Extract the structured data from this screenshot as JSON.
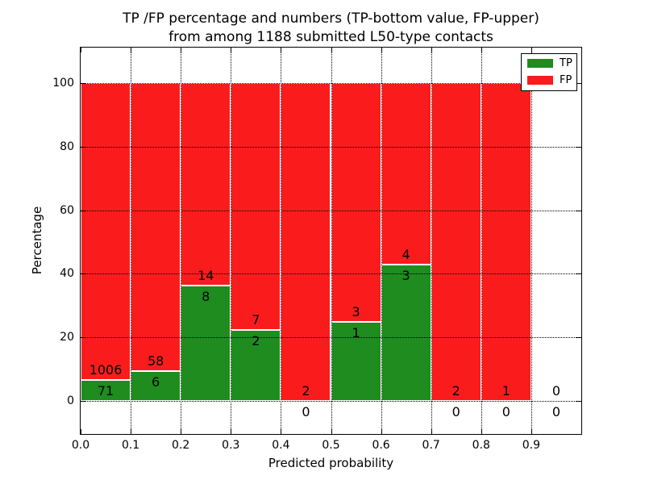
{
  "chart_data": {
    "type": "bar",
    "stacked": true,
    "title_line1": "TP /FP percentage and numbers (TP-bottom value, FP-upper)",
    "title_line2": "from among 1188 submitted L50-type contacts",
    "xlabel": "Predicted probability",
    "ylabel": "Percentage",
    "total_submitted": 1188,
    "contact_type": "L50",
    "legend": [
      {
        "name": "TP",
        "color": "#1e8c1e"
      },
      {
        "name": "FP",
        "color": "#fa1c1c"
      }
    ],
    "legend_position": "upper right",
    "grid": true,
    "xlim": [
      0.0,
      1.0
    ],
    "ylim_shown_ticks": [
      0,
      20,
      40,
      60,
      80,
      100
    ],
    "xtick_labels": [
      "0.0",
      "0.1",
      "0.2",
      "0.3",
      "0.4",
      "0.5",
      "0.6",
      "0.7",
      "0.8",
      "0.9"
    ],
    "ytick_labels": [
      "0",
      "20",
      "40",
      "60",
      "80",
      "100"
    ],
    "bar_note": "each bar is a 0.1-wide probability bin; green TP% bottom, red FP% top; stacks sum to 100% when counts exist",
    "bins": [
      {
        "x0": 0.0,
        "x1": 0.1,
        "tp": 71,
        "fp": 1006
      },
      {
        "x0": 0.1,
        "x1": 0.2,
        "tp": 6,
        "fp": 58
      },
      {
        "x0": 0.2,
        "x1": 0.3,
        "tp": 8,
        "fp": 14
      },
      {
        "x0": 0.3,
        "x1": 0.4,
        "tp": 2,
        "fp": 7
      },
      {
        "x0": 0.4,
        "x1": 0.5,
        "tp": 0,
        "fp": 2
      },
      {
        "x0": 0.5,
        "x1": 0.6,
        "tp": 1,
        "fp": 3
      },
      {
        "x0": 0.6,
        "x1": 0.7,
        "tp": 3,
        "fp": 4
      },
      {
        "x0": 0.7,
        "x1": 0.8,
        "tp": 0,
        "fp": 2
      },
      {
        "x0": 0.8,
        "x1": 0.9,
        "tp": 0,
        "fp": 1
      },
      {
        "x0": 0.9,
        "x1": 1.0,
        "tp": 0,
        "fp": 0
      }
    ]
  }
}
